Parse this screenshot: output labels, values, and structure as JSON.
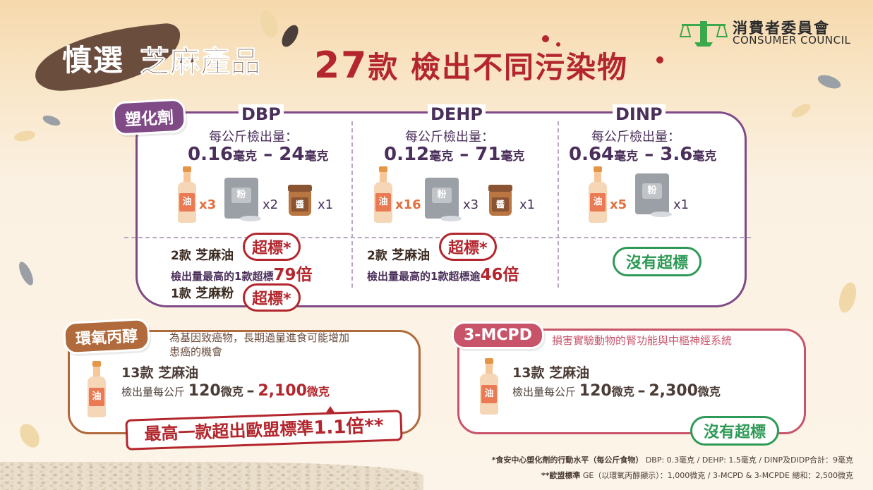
{
  "header": {
    "title_part1": "慎選",
    "title_part2": "芝麻產品",
    "main_num": "27",
    "main_rest": "款 檢出不同污染物",
    "logo_zh": "消費者委員會",
    "logo_en": "CONSUMER COUNCIL"
  },
  "plasticizer": {
    "tag": "塑化劑",
    "amount_label": "每公斤檢出量：",
    "chemicals": [
      {
        "name": "DBP",
        "range_low": "0.16",
        "range_high": "24",
        "unit": "毫克",
        "dash": "–",
        "items": [
          {
            "type": "oil",
            "label": "油",
            "count": "x3"
          },
          {
            "type": "powder",
            "label": "粉",
            "count": "x2"
          },
          {
            "type": "paste",
            "label": "醬",
            "count": "x1"
          }
        ]
      },
      {
        "name": "DEHP",
        "range_low": "0.12",
        "range_high": "71",
        "unit": "毫克",
        "dash": "–",
        "items": [
          {
            "type": "oil",
            "label": "油",
            "count": "x16"
          },
          {
            "type": "powder",
            "label": "粉",
            "count": "x3"
          },
          {
            "type": "paste",
            "label": "醬",
            "count": "x1"
          }
        ]
      },
      {
        "name": "DINP",
        "range_low": "0.64",
        "range_high": "3.6",
        "unit": "毫克",
        "dash": "–",
        "items": [
          {
            "type": "oil",
            "label": "油",
            "count": "x5"
          },
          {
            "type": "powder",
            "label": "粉",
            "count": "x1"
          }
        ]
      }
    ],
    "dbp": {
      "oil_count": "2款",
      "oil_name": "芝麻油",
      "exceed_pill": "超標*",
      "detail_prefix": "檢出量最高的1款超標",
      "detail_times": "79倍",
      "powder_count": "1款",
      "powder_name": "芝麻粉",
      "powder_pill": "超標*"
    },
    "dehp": {
      "oil_count": "2款",
      "oil_name": "芝麻油",
      "exceed_pill": "超標*",
      "detail_prefix": "檢出量最高的1款超標逾",
      "detail_times": "46倍"
    },
    "dinp": {
      "status": "沒有超標"
    }
  },
  "glycidol": {
    "tag": "環氧丙醇",
    "desc_line1": "為基因致癌物，長期過量進食可能增加",
    "desc_line2": "患癌的機會",
    "count": "13款",
    "product": "芝麻油",
    "amount_prefix": "檢出量每公斤",
    "low": "120",
    "low_unit": "微克",
    "dash": "–",
    "high": "2,100",
    "high_unit": "微克",
    "oil_label": "油",
    "banner_text": "最高一款超出歐盟標準",
    "banner_times": "1.1倍**"
  },
  "mcpd": {
    "tag": "3-MCPD",
    "desc": "損害實驗動物的腎功能與中樞神經系統",
    "count": "13款",
    "product": "芝麻油",
    "amount_prefix": "檢出量每公斤",
    "low": "120",
    "low_unit": "微克",
    "dash": "–",
    "high": "2,300",
    "high_unit": "微克",
    "oil_label": "油",
    "status": "沒有超標"
  },
  "footnotes": {
    "line1_bold": "*食安中心塑化劑的行動水平（每公斤食物）",
    "line1_rest": "DBP: 0.3毫克 / DEHP: 1.5毫克 / DINP及DIDP合計：9毫克",
    "line2_bold": "**歐盟標準",
    "line2_rest": "GE（以環氧丙醇顯示）：1,000微克 / 3-MCPD & 3-MCPDE 總和：2,500微克"
  },
  "colors": {
    "plasticizer": "#7f4a86",
    "glycidol": "#b06a3b",
    "mcpd": "#c8546a",
    "exceed": "#b3262d",
    "ok": "#2f9a57"
  }
}
